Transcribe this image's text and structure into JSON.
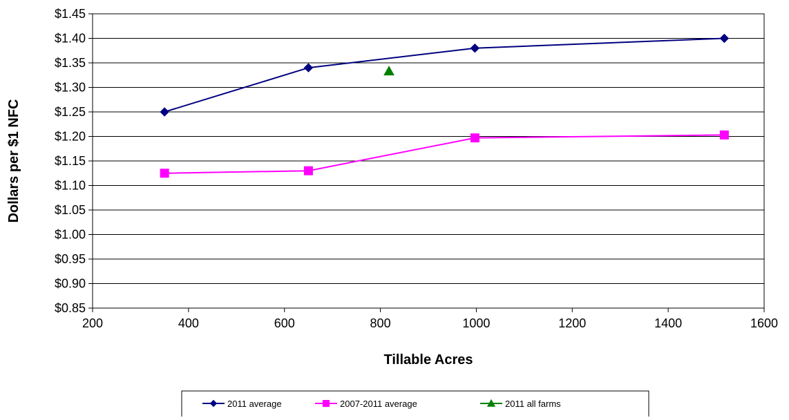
{
  "chart_data": {
    "type": "line",
    "title": "",
    "xlabel": "Tillable Acres",
    "ylabel": "Dollars per $1 NFC",
    "xlim": [
      200,
      1600
    ],
    "ylim": [
      0.85,
      1.45
    ],
    "x_ticks": [
      200,
      400,
      600,
      800,
      1000,
      1200,
      1400,
      1600
    ],
    "y_ticks": [
      0.85,
      0.9,
      0.95,
      1.0,
      1.05,
      1.1,
      1.15,
      1.2,
      1.25,
      1.3,
      1.35,
      1.4,
      1.45
    ],
    "x_tick_labels": [
      "200",
      "400",
      "600",
      "800",
      "1000",
      "1200",
      "1400",
      "1600"
    ],
    "y_tick_labels": [
      "$0.85",
      "$0.90",
      "$0.95",
      "$1.00",
      "$1.05",
      "$1.10",
      "$1.15",
      "$1.20",
      "$1.25",
      "$1.30",
      "$1.35",
      "$1.40",
      "$1.45"
    ],
    "grid": {
      "horizontal": true,
      "vertical": false
    },
    "legend_position": "bottom",
    "series": [
      {
        "name": "2011 average",
        "color": "#000080",
        "marker": "diamond",
        "line": true,
        "points": [
          {
            "x": 350,
            "y": 1.25
          },
          {
            "x": 650,
            "y": 1.34
          },
          {
            "x": 997,
            "y": 1.38
          },
          {
            "x": 1517,
            "y": 1.4
          }
        ]
      },
      {
        "name": "2007-2011 average",
        "color": "#FF00FF",
        "marker": "square",
        "line": true,
        "points": [
          {
            "x": 350,
            "y": 1.125
          },
          {
            "x": 650,
            "y": 1.13
          },
          {
            "x": 997,
            "y": 1.197
          },
          {
            "x": 1517,
            "y": 1.203
          }
        ]
      },
      {
        "name": "2011 all farms",
        "color": "#008000",
        "marker": "triangle",
        "line": false,
        "points": [
          {
            "x": 818,
            "y": 1.333
          }
        ]
      }
    ]
  }
}
